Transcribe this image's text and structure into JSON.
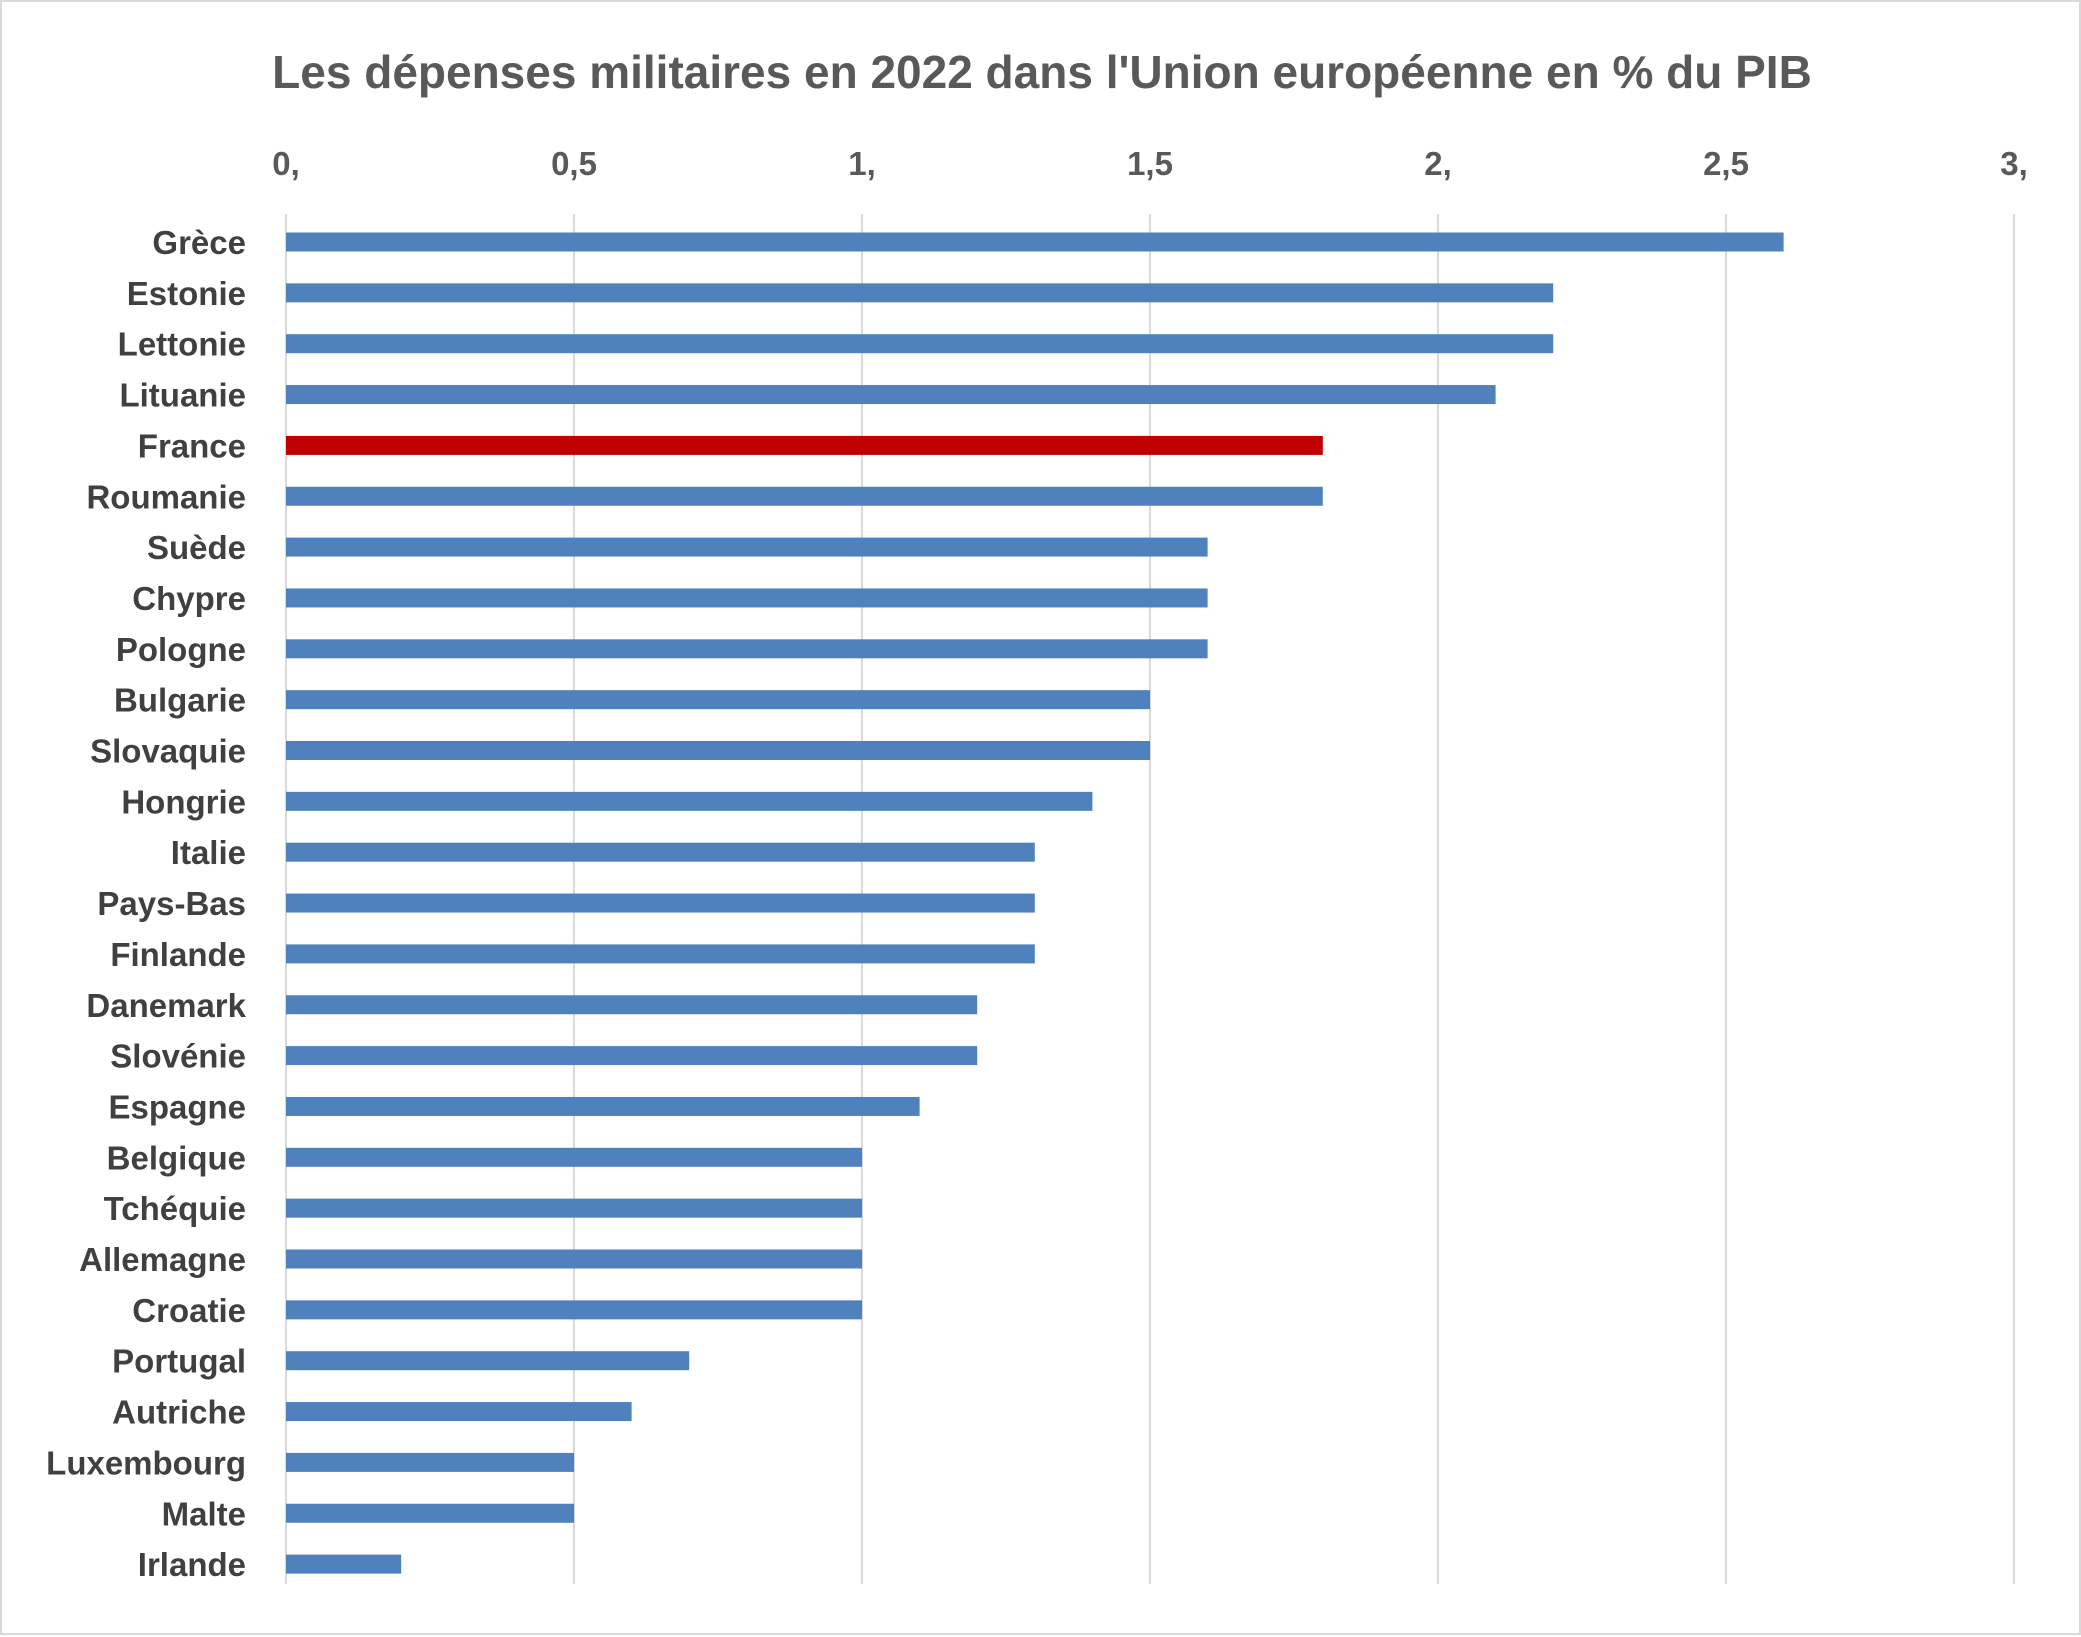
{
  "chart_data": {
    "type": "bar",
    "orientation": "horizontal",
    "title": "Les dépenses militaires en 2022 dans l'Union européenne en % du PIB",
    "xlabel": "",
    "ylabel": "",
    "xlim": [
      0,
      3
    ],
    "x_ticks": [
      0,
      0.5,
      1,
      1.5,
      2,
      2.5,
      3
    ],
    "x_tick_labels": [
      "0,",
      "0,5",
      "1,",
      "1,5",
      "2,",
      "2,5",
      "3,"
    ],
    "x_axis_position": "top",
    "grid": true,
    "legend": "none",
    "categories": [
      "Grèce",
      "Estonie",
      "Lettonie",
      "Lituanie",
      "France",
      "Roumanie",
      "Suède",
      "Chypre",
      "Pologne",
      "Bulgarie",
      "Slovaquie",
      "Hongrie",
      "Italie",
      "Pays-Bas",
      "Finlande",
      "Danemark",
      "Slovénie",
      "Espagne",
      "Belgique",
      "Tchéquie",
      "Allemagne",
      "Croatie",
      "Portugal",
      "Autriche",
      "Luxembourg",
      "Malte",
      "Irlande"
    ],
    "values": [
      2.6,
      2.2,
      2.2,
      2.1,
      1.8,
      1.8,
      1.6,
      1.6,
      1.6,
      1.5,
      1.5,
      1.4,
      1.3,
      1.3,
      1.3,
      1.2,
      1.2,
      1.1,
      1.0,
      1.0,
      1.0,
      1.0,
      0.7,
      0.6,
      0.5,
      0.5,
      0.2
    ],
    "colors": {
      "default": "#4f81bd",
      "highlight": "#c00000",
      "highlight_category": "France",
      "gridline": "#d9d9d9",
      "text": "#595959"
    }
  }
}
